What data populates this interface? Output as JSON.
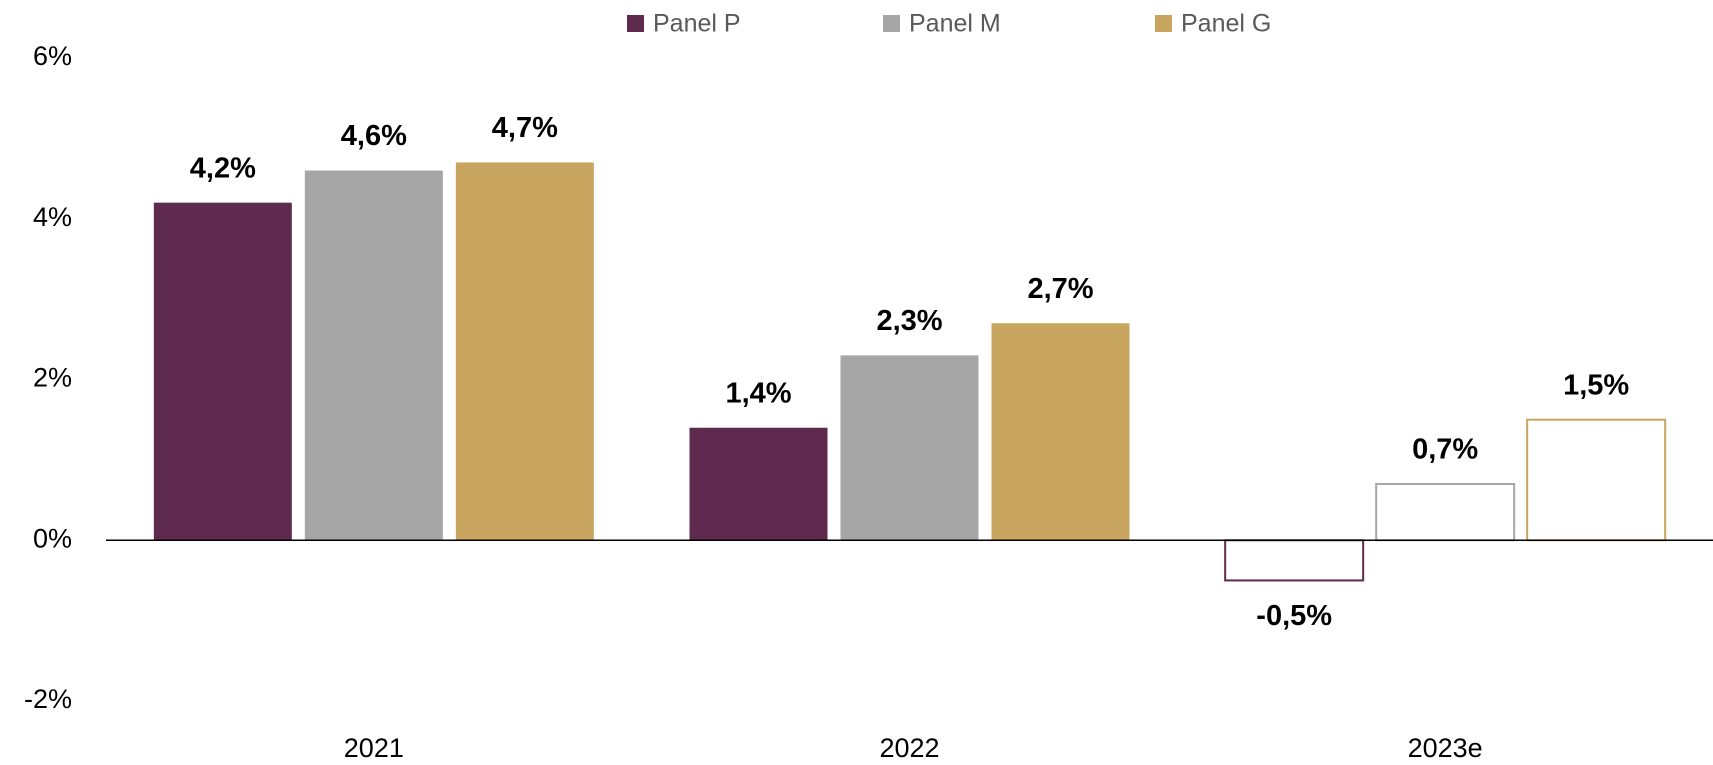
{
  "chart_data": {
    "type": "bar",
    "categories": [
      "2021",
      "2022",
      "2023e"
    ],
    "series": [
      {
        "name": "Panel P",
        "color": "#5e2a4e",
        "values": [
          4.2,
          1.4,
          -0.5
        ],
        "value_labels": [
          "4,2%",
          "1,4%",
          "-0,5%"
        ]
      },
      {
        "name": "Panel M",
        "color": "#a6a6a6",
        "values": [
          4.6,
          2.3,
          0.7
        ],
        "value_labels": [
          "4,6%",
          "2,3%",
          "0,7%"
        ]
      },
      {
        "name": "Panel G",
        "color": "#c8a660",
        "values": [
          4.7,
          2.7,
          1.5
        ],
        "value_labels": [
          "4,7%",
          "2,7%",
          "1,5%"
        ]
      }
    ],
    "outlined": [
      false,
      false,
      true
    ],
    "ylim": [
      -2,
      6
    ],
    "yticks": [
      {
        "value": -2,
        "label": "-2%"
      },
      {
        "value": 0,
        "label": "0%"
      },
      {
        "value": 2,
        "label": "2%"
      },
      {
        "value": 4,
        "label": "4%"
      },
      {
        "value": 6,
        "label": "6%"
      }
    ],
    "grid": false,
    "legend": "top"
  }
}
